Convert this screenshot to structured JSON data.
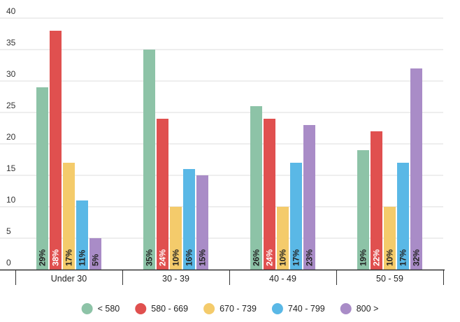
{
  "chart_data": {
    "type": "bar",
    "title": "",
    "xlabel": "",
    "ylabel": "",
    "ylim": [
      0,
      40
    ],
    "yticks": [
      0,
      5,
      10,
      15,
      20,
      25,
      30,
      35,
      40
    ],
    "grid": true,
    "legend_position": "bottom",
    "categories": [
      "Under 30",
      "30 - 39",
      "40 - 49",
      "50 - 59"
    ],
    "series": [
      {
        "name": "< 580",
        "color": "#8dc3a7",
        "label_color": "#222222",
        "values": [
          29,
          35,
          26,
          19
        ],
        "labels": [
          "29%",
          "35%",
          "26%",
          "19%"
        ]
      },
      {
        "name": "580 - 669",
        "color": "#e0504f",
        "label_color": "#ffffff",
        "values": [
          38,
          24,
          24,
          22
        ],
        "labels": [
          "38%",
          "24%",
          "24%",
          "22%"
        ]
      },
      {
        "name": "670 - 739",
        "color": "#f4cb6b",
        "label_color": "#222222",
        "values": [
          17,
          10,
          10,
          10
        ],
        "labels": [
          "17%",
          "10%",
          "10%",
          "10%"
        ]
      },
      {
        "name": "740 - 799",
        "color": "#5ab8e6",
        "label_color": "#222222",
        "values": [
          11,
          16,
          17,
          17
        ],
        "labels": [
          "11%",
          "16%",
          "17%",
          "17%"
        ]
      },
      {
        "name": "800 >",
        "color": "#a98cc7",
        "label_color": "#222222",
        "values": [
          5,
          15,
          23,
          32
        ],
        "labels": [
          "5%",
          "15%",
          "23%",
          "32%"
        ]
      }
    ]
  }
}
